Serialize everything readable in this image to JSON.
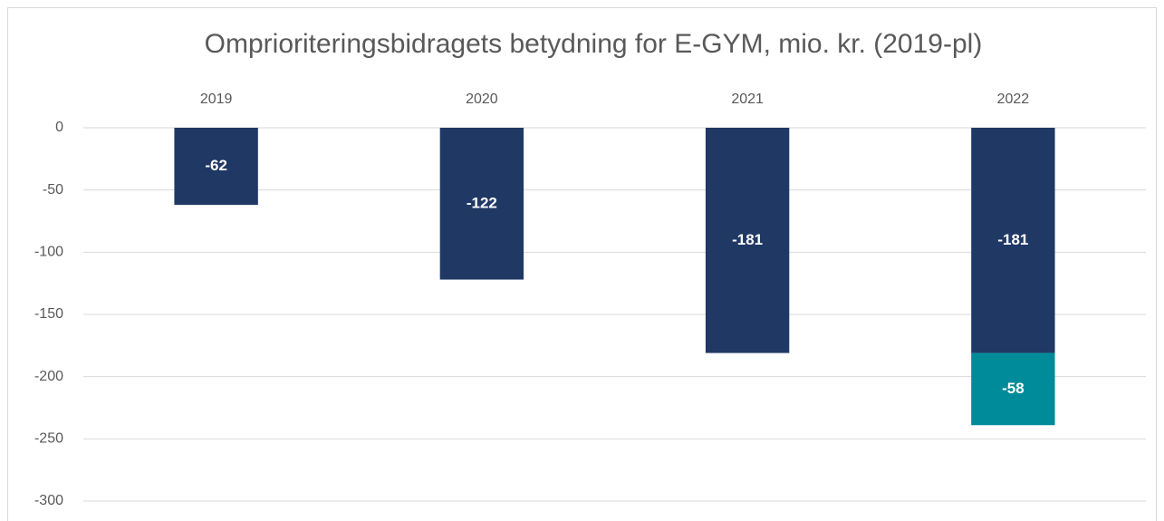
{
  "chart_data": {
    "type": "bar",
    "stacked": true,
    "title": "Omprioriteringsbidragets betydning for E-GYM, mio. kr. (2019-pl)",
    "categories": [
      "2019",
      "2020",
      "2021",
      "2022"
    ],
    "series": [
      {
        "color": "#203864",
        "values": [
          -62,
          -122,
          -181,
          -181
        ]
      },
      {
        "color": "#008b9a",
        "values": [
          null,
          null,
          null,
          -58
        ]
      }
    ],
    "ylim": [
      -300,
      0
    ],
    "yticks": [
      0,
      -50,
      -100,
      -150,
      -200,
      -250,
      -300
    ],
    "grid": true
  }
}
